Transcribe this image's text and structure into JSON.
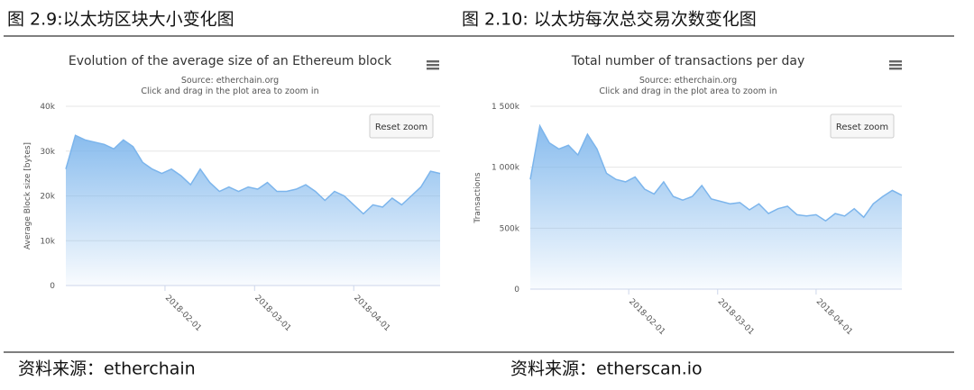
{
  "figures": [
    {
      "caption": "图 2.9:以太坊区块大小变化图",
      "source": "资料来源：etherchain"
    },
    {
      "caption": "图 2.10: 以太坊每次总交易次数变化图",
      "source": "资料来源：etherscan.io"
    }
  ],
  "chart_data": [
    {
      "type": "area",
      "title": "Evolution of the average size of an Ethereum block",
      "subtitle": "Source: etherchain.org",
      "hint": "Click and drag in the plot area to zoom in",
      "button": "Reset zoom",
      "y_label": "Average Block size [bytes]",
      "color": "#7cb5ec",
      "x": [
        "2018-01-01",
        "2018-01-04",
        "2018-01-07",
        "2018-01-10",
        "2018-01-13",
        "2018-01-16",
        "2018-01-19",
        "2018-01-22",
        "2018-01-25",
        "2018-01-28",
        "2018-01-31",
        "2018-02-03",
        "2018-02-06",
        "2018-02-09",
        "2018-02-12",
        "2018-02-15",
        "2018-02-18",
        "2018-02-21",
        "2018-02-24",
        "2018-02-27",
        "2018-03-02",
        "2018-03-05",
        "2018-03-08",
        "2018-03-11",
        "2018-03-14",
        "2018-03-17",
        "2018-03-20",
        "2018-03-23",
        "2018-03-26",
        "2018-03-29",
        "2018-04-01",
        "2018-04-04",
        "2018-04-07",
        "2018-04-10",
        "2018-04-13",
        "2018-04-16",
        "2018-04-19",
        "2018-04-22",
        "2018-04-25",
        "2018-04-28"
      ],
      "values": [
        26000,
        33500,
        32500,
        32000,
        31500,
        30500,
        32500,
        31000,
        27500,
        26000,
        25000,
        26000,
        24500,
        22500,
        26000,
        23000,
        21000,
        22000,
        21000,
        22000,
        21500,
        23000,
        21000,
        21000,
        21500,
        22500,
        21000,
        19000,
        21000,
        20000,
        18000,
        16000,
        18000,
        17500,
        19500,
        18000,
        20000,
        22000,
        25500,
        25000
      ],
      "xlim": [
        "2018-01-01",
        "2018-04-28"
      ],
      "xticks": [
        "2018-02-01",
        "2018-03-01",
        "2018-04-01"
      ],
      "ylim": [
        0,
        40000
      ],
      "yticks": [
        0,
        {
          "value": 10000,
          "label": "10k"
        },
        {
          "value": 20000,
          "label": "20k"
        },
        {
          "value": 30000,
          "label": "30k"
        },
        {
          "value": 40000,
          "label": "40k"
        }
      ],
      "grid": true
    },
    {
      "type": "area",
      "title": "Total number of transactions per day",
      "subtitle": "Source: etherchain.org",
      "hint": "Click and drag in the plot area to zoom in",
      "button": "Reset zoom",
      "y_label": "Transactions",
      "color": "#7cb5ec",
      "x": [
        "2018-01-01",
        "2018-01-04",
        "2018-01-07",
        "2018-01-10",
        "2018-01-13",
        "2018-01-16",
        "2018-01-19",
        "2018-01-22",
        "2018-01-25",
        "2018-01-28",
        "2018-01-31",
        "2018-02-03",
        "2018-02-06",
        "2018-02-09",
        "2018-02-12",
        "2018-02-15",
        "2018-02-18",
        "2018-02-21",
        "2018-02-24",
        "2018-02-27",
        "2018-03-02",
        "2018-03-05",
        "2018-03-08",
        "2018-03-11",
        "2018-03-14",
        "2018-03-17",
        "2018-03-20",
        "2018-03-23",
        "2018-03-26",
        "2018-03-29",
        "2018-04-01",
        "2018-04-04",
        "2018-04-07",
        "2018-04-10",
        "2018-04-13",
        "2018-04-16",
        "2018-04-19",
        "2018-04-22",
        "2018-04-25",
        "2018-04-28"
      ],
      "values": [
        900000,
        1340000,
        1200000,
        1150000,
        1180000,
        1100000,
        1270000,
        1150000,
        950000,
        900000,
        880000,
        920000,
        820000,
        780000,
        880000,
        760000,
        730000,
        760000,
        850000,
        740000,
        720000,
        700000,
        710000,
        650000,
        700000,
        620000,
        660000,
        680000,
        610000,
        600000,
        610000,
        560000,
        620000,
        600000,
        660000,
        590000,
        700000,
        760000,
        810000,
        770000
      ],
      "xlim": [
        "2018-01-01",
        "2018-04-28"
      ],
      "xticks": [
        "2018-02-01",
        "2018-03-01",
        "2018-04-01"
      ],
      "ylim": [
        0,
        1500000
      ],
      "yticks": [
        0,
        {
          "value": 500000,
          "label": "500k"
        },
        {
          "value": 1000000,
          "label": "1 000k"
        },
        {
          "value": 1500000,
          "label": "1 500k"
        }
      ],
      "grid": true
    }
  ]
}
